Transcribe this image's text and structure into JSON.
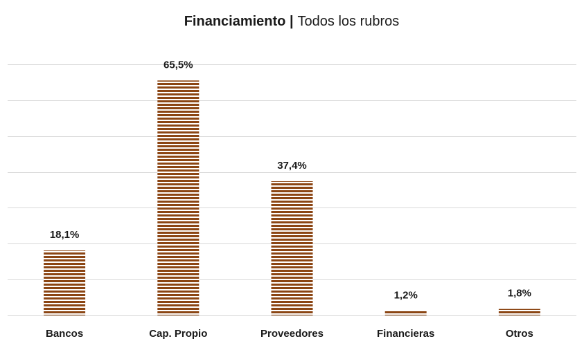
{
  "chart_data": {
    "type": "bar",
    "title": "Financiamiento |",
    "subtitle": "Todos los rubros",
    "categories": [
      "Bancos",
      "Cap. Propio",
      "Proveedores",
      "Financieras",
      "Otros"
    ],
    "values": [
      18.1,
      65.5,
      37.4,
      1.2,
      1.8
    ],
    "value_labels": [
      "18,1%",
      "65,5%",
      "37,4%",
      "1,2%",
      "1,8%"
    ],
    "color": "#8b4513",
    "ylim": [
      0,
      70
    ],
    "yticks": [
      0,
      10,
      20,
      30,
      40,
      50,
      60,
      70
    ],
    "grid": true
  }
}
